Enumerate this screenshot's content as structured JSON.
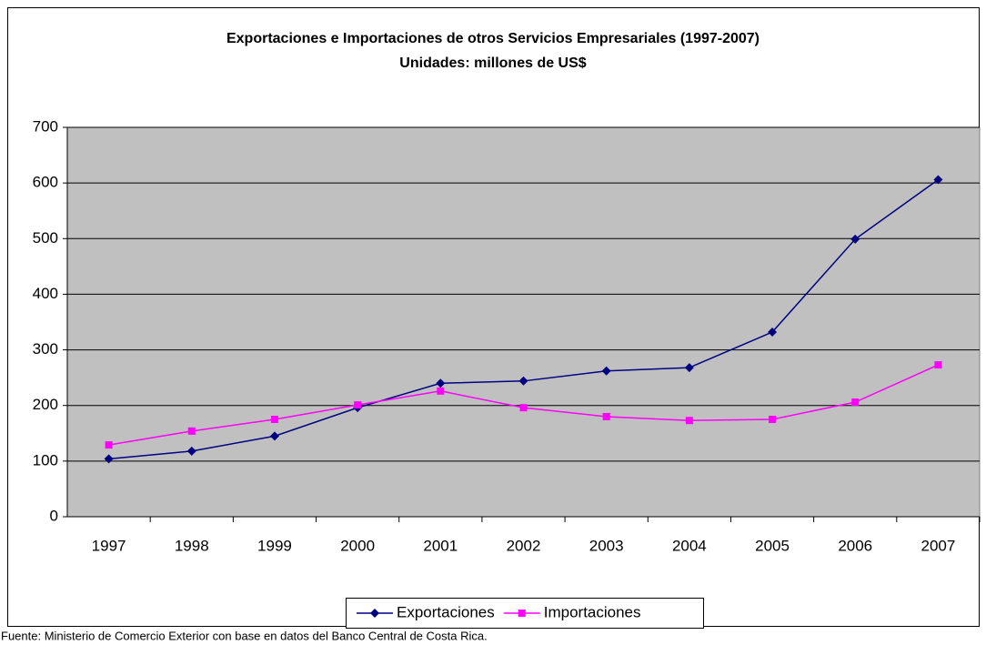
{
  "chart_data": {
    "type": "line",
    "title": "Exportaciones e Importaciones de otros Servicios Empresariales (1997-2007)",
    "subtitle": "Unidades: millones de US$",
    "categories": [
      "1997",
      "1998",
      "1999",
      "2000",
      "2001",
      "2002",
      "2003",
      "2004",
      "2005",
      "2006",
      "2007"
    ],
    "series": [
      {
        "name": "Exportaciones",
        "color": "#000080",
        "marker": "diamond",
        "values": [
          104,
          118,
          145,
          196,
          240,
          244,
          262,
          268,
          332,
          499,
          606
        ]
      },
      {
        "name": "Importaciones",
        "color": "#ff00ff",
        "marker": "square",
        "values": [
          129,
          154,
          175,
          201,
          226,
          196,
          180,
          173,
          175,
          206,
          273
        ]
      }
    ],
    "ylim": [
      0,
      700
    ],
    "yticks": [
      0,
      100,
      200,
      300,
      400,
      500,
      600,
      700
    ],
    "grid": true,
    "legend": "bottom",
    "source": "Fuente: Ministerio de Comercio Exterior con base en datos del Banco Central de Costa Rica."
  }
}
